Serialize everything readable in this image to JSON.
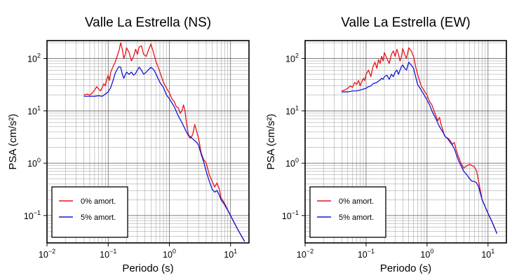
{
  "chart_data": [
    {
      "type": "line",
      "title": "Valle La Estrella (NS)",
      "xlabel": "Periodo (s)",
      "ylabel": "PSA (cm/s²)",
      "xscale": "log",
      "yscale": "log",
      "xlim": [
        0.01,
        20
      ],
      "ylim": [
        0.03,
        220
      ],
      "grid": true,
      "x_ticks": [
        {
          "value": 0.01,
          "base": "10",
          "exp": "−2"
        },
        {
          "value": 0.1,
          "base": "10",
          "exp": "−1"
        },
        {
          "value": 1,
          "base": "10",
          "exp": "0"
        },
        {
          "value": 10,
          "base": "10",
          "exp": "1"
        }
      ],
      "y_ticks": [
        {
          "value": 0.1,
          "base": "10",
          "exp": "−1"
        },
        {
          "value": 1,
          "base": "10",
          "exp": "0"
        },
        {
          "value": 10,
          "base": "10",
          "exp": "1"
        },
        {
          "value": 100,
          "base": "10",
          "exp": "2"
        }
      ],
      "legend": {
        "position": "bottom-left"
      },
      "series": [
        {
          "name": "0% amort.",
          "color": "#e8141a",
          "points": [
            [
              0.04,
              20
            ],
            [
              0.045,
              21
            ],
            [
              0.05,
              20
            ],
            [
              0.055,
              22
            ],
            [
              0.06,
              25
            ],
            [
              0.065,
              29
            ],
            [
              0.07,
              26
            ],
            [
              0.075,
              24
            ],
            [
              0.08,
              28
            ],
            [
              0.085,
              33
            ],
            [
              0.09,
              30
            ],
            [
              0.095,
              40
            ],
            [
              0.1,
              48
            ],
            [
              0.105,
              38
            ],
            [
              0.11,
              55
            ],
            [
              0.12,
              70
            ],
            [
              0.13,
              85
            ],
            [
              0.14,
              110
            ],
            [
              0.15,
              140
            ],
            [
              0.16,
              200
            ],
            [
              0.17,
              150
            ],
            [
              0.18,
              100
            ],
            [
              0.19,
              120
            ],
            [
              0.2,
              160
            ],
            [
              0.22,
              130
            ],
            [
              0.24,
              90
            ],
            [
              0.26,
              110
            ],
            [
              0.28,
              150
            ],
            [
              0.3,
              120
            ],
            [
              0.32,
              165
            ],
            [
              0.35,
              175
            ],
            [
              0.38,
              120
            ],
            [
              0.42,
              110
            ],
            [
              0.46,
              150
            ],
            [
              0.5,
              190
            ],
            [
              0.55,
              130
            ],
            [
              0.6,
              90
            ],
            [
              0.65,
              70
            ],
            [
              0.7,
              55
            ],
            [
              0.8,
              35
            ],
            [
              0.9,
              27
            ],
            [
              1.0,
              22
            ],
            [
              1.1,
              17
            ],
            [
              1.2,
              15
            ],
            [
              1.3,
              12
            ],
            [
              1.4,
              11.5
            ],
            [
              1.5,
              9
            ],
            [
              1.6,
              10
            ],
            [
              1.7,
              13
            ],
            [
              1.8,
              10
            ],
            [
              1.9,
              6
            ],
            [
              2.0,
              4
            ],
            [
              2.1,
              3.2
            ],
            [
              2.2,
              3
            ],
            [
              2.4,
              3.5
            ],
            [
              2.6,
              5.5
            ],
            [
              2.8,
              4
            ],
            [
              3.0,
              3
            ],
            [
              3.3,
              1.6
            ],
            [
              3.6,
              1.2
            ],
            [
              4.0,
              1.0
            ],
            [
              4.5,
              0.6
            ],
            [
              5.0,
              0.45
            ],
            [
              5.5,
              0.35
            ],
            [
              6.0,
              0.42
            ],
            [
              6.5,
              0.33
            ],
            [
              7.0,
              0.22
            ],
            [
              8.0,
              0.17
            ],
            [
              10,
              0.1
            ],
            [
              13,
              0.055
            ],
            [
              17,
              0.032
            ]
          ]
        },
        {
          "name": "5% amort.",
          "color": "#1018d8",
          "points": [
            [
              0.04,
              19
            ],
            [
              0.05,
              19
            ],
            [
              0.06,
              19
            ],
            [
              0.07,
              19.5
            ],
            [
              0.08,
              19
            ],
            [
              0.09,
              21
            ],
            [
              0.1,
              23
            ],
            [
              0.11,
              28
            ],
            [
              0.12,
              38
            ],
            [
              0.13,
              52
            ],
            [
              0.14,
              62
            ],
            [
              0.15,
              70
            ],
            [
              0.16,
              68
            ],
            [
              0.17,
              50
            ],
            [
              0.18,
              42
            ],
            [
              0.2,
              55
            ],
            [
              0.22,
              50
            ],
            [
              0.24,
              55
            ],
            [
              0.26,
              48
            ],
            [
              0.28,
              52
            ],
            [
              0.3,
              60
            ],
            [
              0.32,
              68
            ],
            [
              0.35,
              60
            ],
            [
              0.38,
              50
            ],
            [
              0.42,
              55
            ],
            [
              0.46,
              62
            ],
            [
              0.5,
              68
            ],
            [
              0.55,
              62
            ],
            [
              0.6,
              52
            ],
            [
              0.65,
              42
            ],
            [
              0.7,
              35
            ],
            [
              0.8,
              28
            ],
            [
              0.9,
              20
            ],
            [
              1.0,
              17
            ],
            [
              1.2,
              12
            ],
            [
              1.4,
              8
            ],
            [
              1.6,
              6
            ],
            [
              1.8,
              4.5
            ],
            [
              2.0,
              3.5
            ],
            [
              2.2,
              3.2
            ],
            [
              2.5,
              2.8
            ],
            [
              2.8,
              2.5
            ],
            [
              3.0,
              2.2
            ],
            [
              3.3,
              1.5
            ],
            [
              3.6,
              1.1
            ],
            [
              4.0,
              0.7
            ],
            [
              4.5,
              0.45
            ],
            [
              5.0,
              0.32
            ],
            [
              5.5,
              0.28
            ],
            [
              6.0,
              0.3
            ],
            [
              6.5,
              0.25
            ],
            [
              7.0,
              0.2
            ],
            [
              8.0,
              0.16
            ],
            [
              10,
              0.1
            ],
            [
              13,
              0.055
            ],
            [
              17,
              0.032
            ]
          ]
        }
      ]
    },
    {
      "type": "line",
      "title": "Valle La Estrella (EW)",
      "xlabel": "Periodo (s)",
      "ylabel": "PSA (cm/s²)",
      "xscale": "log",
      "yscale": "log",
      "xlim": [
        0.01,
        20
      ],
      "ylim": [
        0.03,
        220
      ],
      "grid": true,
      "x_ticks": [
        {
          "value": 0.01,
          "base": "10",
          "exp": "−2"
        },
        {
          "value": 0.1,
          "base": "10",
          "exp": "−1"
        },
        {
          "value": 1,
          "base": "10",
          "exp": "0"
        },
        {
          "value": 10,
          "base": "10",
          "exp": "1"
        }
      ],
      "y_ticks": [
        {
          "value": 0.1,
          "base": "10",
          "exp": "−1"
        },
        {
          "value": 1,
          "base": "10",
          "exp": "0"
        },
        {
          "value": 10,
          "base": "10",
          "exp": "1"
        },
        {
          "value": 100,
          "base": "10",
          "exp": "2"
        }
      ],
      "legend": {
        "position": "bottom-left"
      },
      "series": [
        {
          "name": "0% amort.",
          "color": "#e8141a",
          "points": [
            [
              0.04,
              24
            ],
            [
              0.045,
              25
            ],
            [
              0.05,
              27
            ],
            [
              0.055,
              30
            ],
            [
              0.06,
              28
            ],
            [
              0.065,
              35
            ],
            [
              0.07,
              32
            ],
            [
              0.075,
              38
            ],
            [
              0.08,
              30
            ],
            [
              0.085,
              36
            ],
            [
              0.09,
              42
            ],
            [
              0.095,
              38
            ],
            [
              0.1,
              50
            ],
            [
              0.11,
              60
            ],
            [
              0.12,
              45
            ],
            [
              0.13,
              70
            ],
            [
              0.14,
              85
            ],
            [
              0.15,
              65
            ],
            [
              0.16,
              95
            ],
            [
              0.17,
              80
            ],
            [
              0.18,
              110
            ],
            [
              0.19,
              90
            ],
            [
              0.2,
              130
            ],
            [
              0.22,
              100
            ],
            [
              0.24,
              80
            ],
            [
              0.26,
              120
            ],
            [
              0.28,
              140
            ],
            [
              0.3,
              110
            ],
            [
              0.32,
              150
            ],
            [
              0.34,
              120
            ],
            [
              0.36,
              90
            ],
            [
              0.38,
              110
            ],
            [
              0.4,
              155
            ],
            [
              0.43,
              120
            ],
            [
              0.46,
              100
            ],
            [
              0.5,
              160
            ],
            [
              0.55,
              140
            ],
            [
              0.6,
              110
            ],
            [
              0.65,
              70
            ],
            [
              0.7,
              50
            ],
            [
              0.8,
              30
            ],
            [
              0.9,
              24
            ],
            [
              1.0,
              20
            ],
            [
              1.1,
              15
            ],
            [
              1.2,
              13
            ],
            [
              1.3,
              10
            ],
            [
              1.4,
              8
            ],
            [
              1.5,
              6.5
            ],
            [
              1.6,
              7.5
            ],
            [
              1.7,
              5.5
            ],
            [
              1.8,
              4.5
            ],
            [
              1.9,
              3.5
            ],
            [
              2.0,
              3.2
            ],
            [
              2.2,
              3
            ],
            [
              2.4,
              2.7
            ],
            [
              2.6,
              2.3
            ],
            [
              2.8,
              2.5
            ],
            [
              3.0,
              1.8
            ],
            [
              3.3,
              1.3
            ],
            [
              3.6,
              1.0
            ],
            [
              4.0,
              0.8
            ],
            [
              4.5,
              0.9
            ],
            [
              5.0,
              0.95
            ],
            [
              5.5,
              0.9
            ],
            [
              6.0,
              0.85
            ],
            [
              6.5,
              0.7
            ],
            [
              7.0,
              0.45
            ],
            [
              8.0,
              0.2
            ],
            [
              10,
              0.11
            ],
            [
              12,
              0.07
            ],
            [
              14,
              0.045
            ]
          ]
        },
        {
          "name": "5% amort.",
          "color": "#1018d8",
          "points": [
            [
              0.04,
              23
            ],
            [
              0.05,
              23
            ],
            [
              0.06,
              24
            ],
            [
              0.07,
              24
            ],
            [
              0.08,
              25
            ],
            [
              0.09,
              26
            ],
            [
              0.1,
              27
            ],
            [
              0.11,
              29
            ],
            [
              0.12,
              30
            ],
            [
              0.13,
              33
            ],
            [
              0.14,
              34
            ],
            [
              0.15,
              35
            ],
            [
              0.16,
              37
            ],
            [
              0.17,
              39
            ],
            [
              0.18,
              42
            ],
            [
              0.19,
              40
            ],
            [
              0.2,
              45
            ],
            [
              0.22,
              48
            ],
            [
              0.24,
              40
            ],
            [
              0.26,
              50
            ],
            [
              0.28,
              45
            ],
            [
              0.3,
              55
            ],
            [
              0.32,
              60
            ],
            [
              0.34,
              50
            ],
            [
              0.36,
              60
            ],
            [
              0.38,
              70
            ],
            [
              0.4,
              75
            ],
            [
              0.43,
              65
            ],
            [
              0.46,
              60
            ],
            [
              0.5,
              85
            ],
            [
              0.55,
              75
            ],
            [
              0.6,
              65
            ],
            [
              0.65,
              45
            ],
            [
              0.7,
              32
            ],
            [
              0.8,
              25
            ],
            [
              0.9,
              20
            ],
            [
              1.0,
              16
            ],
            [
              1.1,
              13
            ],
            [
              1.2,
              10
            ],
            [
              1.4,
              7
            ],
            [
              1.6,
              5
            ],
            [
              1.8,
              4
            ],
            [
              2.0,
              3.2
            ],
            [
              2.2,
              2.9
            ],
            [
              2.4,
              2.5
            ],
            [
              2.6,
              2.2
            ],
            [
              2.8,
              1.9
            ],
            [
              3.0,
              1.5
            ],
            [
              3.3,
              1.1
            ],
            [
              3.6,
              0.9
            ],
            [
              4.0,
              0.7
            ],
            [
              4.5,
              0.6
            ],
            [
              5.0,
              0.5
            ],
            [
              5.5,
              0.45
            ],
            [
              6.0,
              0.45
            ],
            [
              6.5,
              0.42
            ],
            [
              7.0,
              0.35
            ],
            [
              8.0,
              0.2
            ],
            [
              10,
              0.11
            ],
            [
              12,
              0.07
            ],
            [
              14,
              0.045
            ]
          ]
        }
      ]
    }
  ]
}
